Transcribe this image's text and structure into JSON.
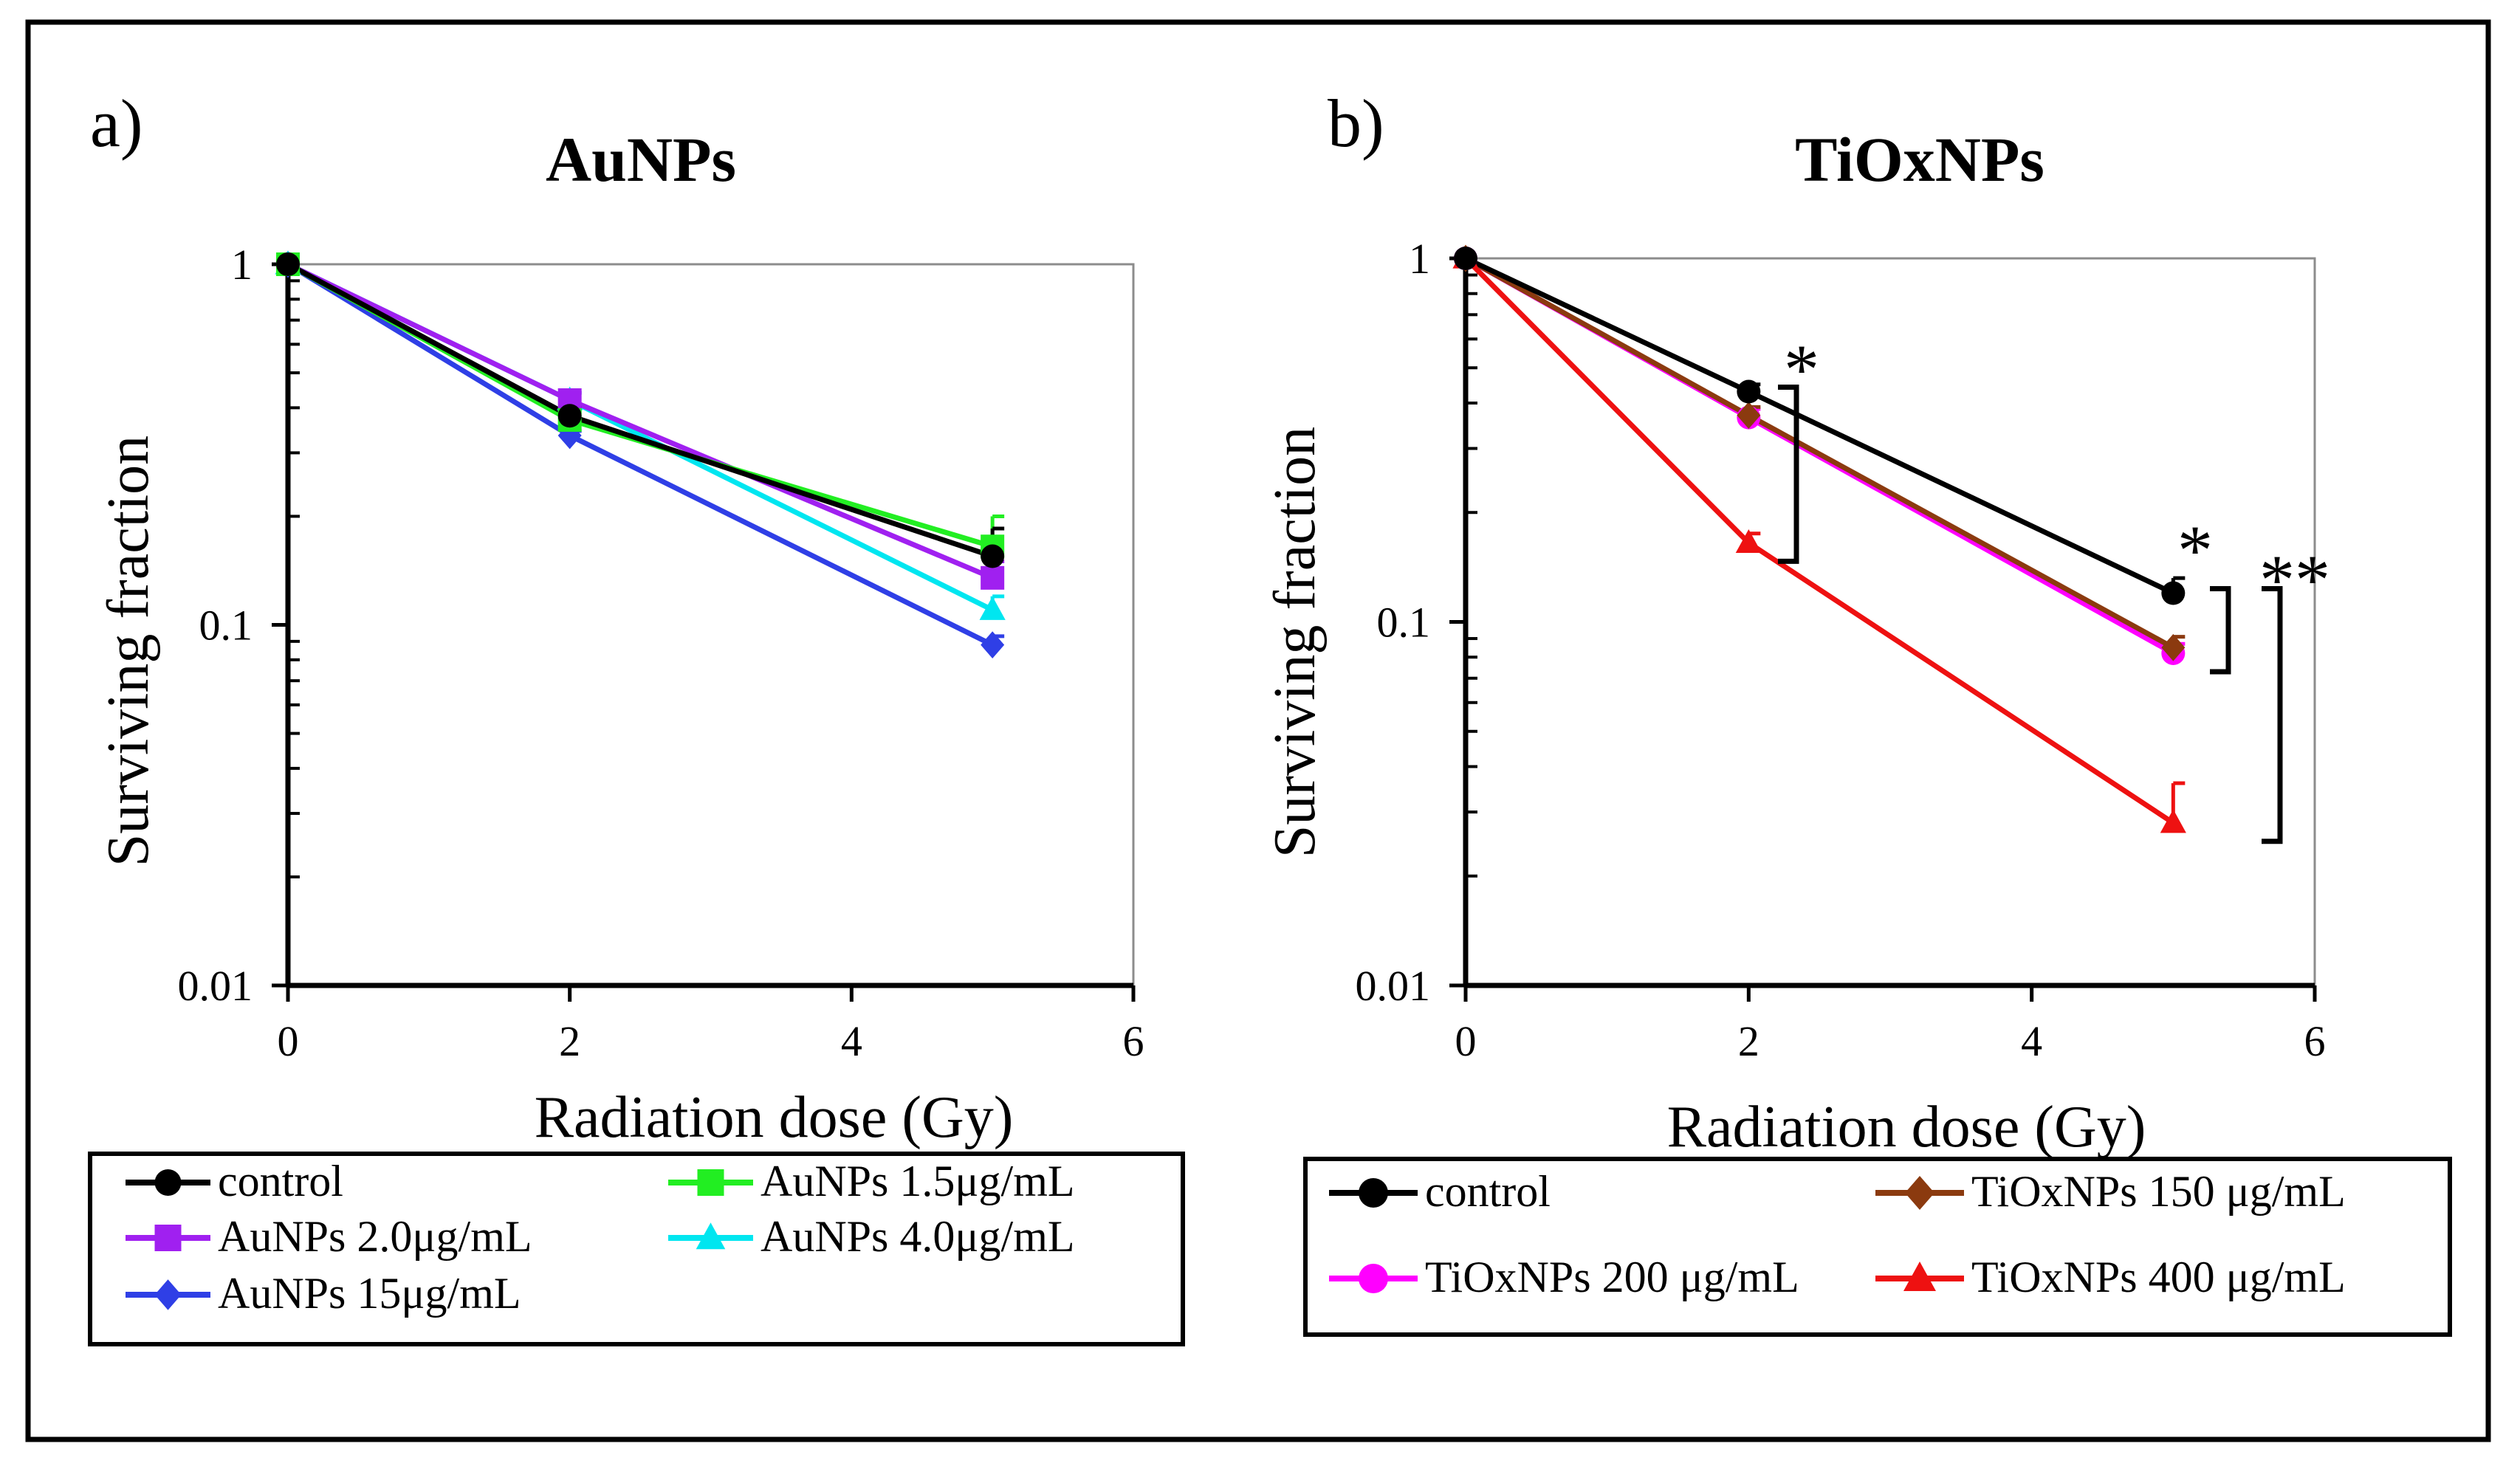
{
  "chart_data": [
    {
      "type": "line",
      "panel_label": "a)",
      "title": "AuNPs",
      "xlabel": "Radiation dose (Gy)",
      "ylabel": "Surviving fraction",
      "x_scale": "linear",
      "y_scale": "log",
      "xlim": [
        0,
        6
      ],
      "ylim": [
        0.01,
        1
      ],
      "x_ticks": [
        0,
        2,
        4,
        6
      ],
      "x_tick_labels": [
        "0",
        "2",
        "4",
        "6"
      ],
      "y_ticks": [
        1,
        0.1,
        0.01
      ],
      "y_tick_labels": [
        "1",
        "0.1",
        "0.01"
      ],
      "grid": false,
      "legend_position": "bottom, two columns",
      "series": [
        {
          "name": "control",
          "color": "#000000",
          "marker": "circle",
          "x": [
            0,
            2,
            5
          ],
          "y": [
            1,
            0.38,
            0.155
          ],
          "err": [
            0,
            0.02,
            0.03
          ]
        },
        {
          "name": "AuNPs 1.5μg/mL",
          "color": "#22ee22",
          "marker": "square",
          "x": [
            0,
            2,
            5
          ],
          "y": [
            1,
            0.37,
            0.165
          ],
          "err": [
            0,
            0.02,
            0.035
          ]
        },
        {
          "name": "AuNPs 2.0μg/mL",
          "color": "#a020f0",
          "marker": "square",
          "x": [
            0,
            2,
            5
          ],
          "y": [
            1,
            0.42,
            0.135
          ],
          "err": [
            0,
            0.02,
            0.015
          ]
        },
        {
          "name": "AuNPs 4.0μg/mL",
          "color": "#00e6f0",
          "marker": "triangle",
          "x": [
            0,
            2,
            5
          ],
          "y": [
            1,
            0.42,
            0.11
          ],
          "err": [
            0,
            0.02,
            0.01
          ]
        },
        {
          "name": "AuNPs 15μg/mL",
          "color": "#2f3fe6",
          "marker": "diamond",
          "x": [
            0,
            2,
            5
          ],
          "y": [
            1,
            0.335,
            0.088
          ],
          "err": [
            0,
            0.01,
            0.005
          ]
        }
      ],
      "legend_order": [
        "control",
        "AuNPs 1.5μg/mL",
        "AuNPs 2.0μg/mL",
        "AuNPs 4.0μg/mL",
        "AuNPs 15μg/mL"
      ]
    },
    {
      "type": "line",
      "panel_label": "b)",
      "title": "TiOxNPs",
      "xlabel": "Radiation dose (Gy)",
      "ylabel": "Surviving fraction",
      "x_scale": "linear",
      "y_scale": "log",
      "xlim": [
        0,
        6
      ],
      "ylim": [
        0.01,
        1
      ],
      "x_ticks": [
        0,
        2,
        4,
        6
      ],
      "x_tick_labels": [
        "0",
        "2",
        "4",
        "6"
      ],
      "y_ticks": [
        1,
        0.1,
        0.01
      ],
      "y_tick_labels": [
        "1",
        "0.1",
        "0.01"
      ],
      "grid": false,
      "legend_position": "bottom, two columns",
      "series": [
        {
          "name": "control",
          "color": "#000000",
          "marker": "circle",
          "x": [
            0,
            2,
            5
          ],
          "y": [
            1,
            0.43,
            0.12
          ],
          "err": [
            0,
            0.02,
            0.012
          ]
        },
        {
          "name": "TiOxNPs 150 μg/mL",
          "color": "#8b3a0f",
          "marker": "diamond",
          "x": [
            0,
            2,
            5
          ],
          "y": [
            1,
            0.37,
            0.085
          ],
          "err": [
            0,
            0.02,
            0.006
          ]
        },
        {
          "name": "TiOxNPs 200 μg/mL",
          "color": "#ff00ff",
          "marker": "circle",
          "x": [
            0,
            2,
            5
          ],
          "y": [
            1,
            0.365,
            0.082
          ],
          "err": [
            0,
            0.02,
            0.005
          ]
        },
        {
          "name": "TiOxNPs 400 μg/mL",
          "color": "#ee1111",
          "marker": "triangle",
          "x": [
            0,
            2,
            5
          ],
          "y": [
            1,
            0.165,
            0.028
          ],
          "err": [
            0,
            0.01,
            0.008
          ]
        }
      ],
      "legend_order": [
        "control",
        "TiOxNPs 150 μg/mL",
        "TiOxNPs 200 μg/mL",
        "TiOxNPs 400 μg/mL"
      ],
      "annotations": [
        {
          "text": "*",
          "compares": [
            "control",
            "TiOxNPs 400 μg/mL"
          ],
          "x": 2
        },
        {
          "text": "*",
          "compares": [
            "control",
            "TiOxNPs 200 μg/mL"
          ],
          "x": 5
        },
        {
          "text": "**",
          "compares": [
            "control",
            "TiOxNPs 400 μg/mL"
          ],
          "x": 5
        }
      ]
    }
  ]
}
